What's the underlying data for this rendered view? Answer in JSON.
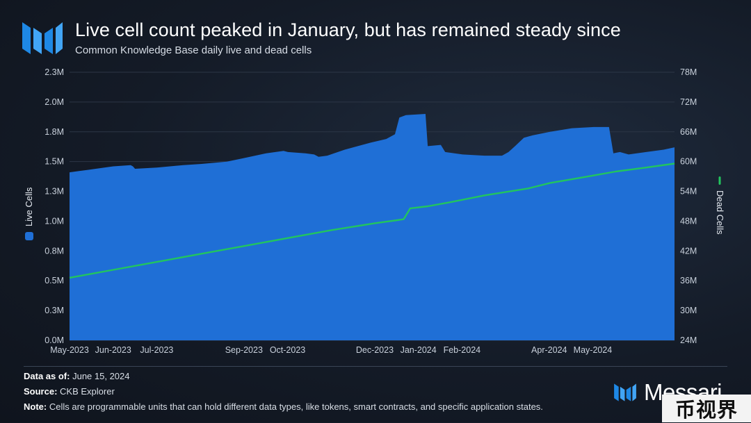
{
  "header": {
    "title": "Live cell count peaked in January, but has remained steady since",
    "subtitle": "Common Knowledge Base daily live and dead cells"
  },
  "footer": {
    "data_as_of_label": "Data as of:",
    "data_as_of_value": "June 15, 2024",
    "source_label": "Source:",
    "source_value": "CKB Explorer",
    "note_label": "Note:",
    "note_value": "Cells are programmable units that can hold different data types, like tokens, smart contracts, and specific application states."
  },
  "brand": {
    "name": "Messari"
  },
  "watermark": {
    "text": "币视界"
  },
  "colors": {
    "live_area": "#1f6fd6",
    "dead_line": "#22c55e",
    "background": "#151c28",
    "grid": "#2a3444"
  },
  "chart_data": {
    "type": "area",
    "title": "Live cell count peaked in January, but has remained steady since",
    "subtitle": "Common Knowledge Base daily live and dead cells",
    "x_tick_labels": [
      "May-2023",
      "Jun-2023",
      "Jul-2023",
      "Sep-2023",
      "Oct-2023",
      "Dec-2023",
      "Jan-2024",
      "Feb-2024",
      "Apr-2024",
      "May-2024"
    ],
    "y_left": {
      "label": "Live Cells",
      "ticks": [
        "0.0M",
        "0.3M",
        "0.5M",
        "0.8M",
        "1.0M",
        "1.3M",
        "1.5M",
        "1.8M",
        "2.0M",
        "2.3M"
      ],
      "tick_values": [
        0,
        0.25,
        0.5,
        0.75,
        1.0,
        1.25,
        1.5,
        1.75,
        2.0,
        2.25
      ],
      "range": [
        0,
        2.25
      ]
    },
    "y_right": {
      "label": "Dead Cells",
      "ticks": [
        "24M",
        "30M",
        "36M",
        "42M",
        "48M",
        "54M",
        "60M",
        "66M",
        "72M",
        "78M"
      ],
      "tick_values": [
        24,
        30,
        36,
        42,
        48,
        54,
        60,
        66,
        72,
        78
      ],
      "range": [
        24,
        78
      ]
    },
    "grid": true,
    "legend": "axis-titles",
    "series": [
      {
        "name": "Live Cells",
        "axis": "left",
        "type": "area",
        "points": [
          [
            0,
            1.41
          ],
          [
            0.2,
            1.42
          ],
          [
            0.6,
            1.44
          ],
          [
            1.0,
            1.46
          ],
          [
            1.4,
            1.47
          ],
          [
            1.45,
            1.46
          ],
          [
            1.5,
            1.44
          ],
          [
            2.0,
            1.45
          ],
          [
            2.6,
            1.47
          ],
          [
            3.0,
            1.48
          ],
          [
            3.6,
            1.5
          ],
          [
            4.0,
            1.53
          ],
          [
            4.5,
            1.57
          ],
          [
            4.9,
            1.59
          ],
          [
            5.0,
            1.58
          ],
          [
            5.4,
            1.57
          ],
          [
            5.6,
            1.56
          ],
          [
            5.7,
            1.54
          ],
          [
            5.9,
            1.55
          ],
          [
            6.3,
            1.6
          ],
          [
            6.9,
            1.66
          ],
          [
            7.25,
            1.69
          ],
          [
            7.45,
            1.73
          ],
          [
            7.55,
            1.87
          ],
          [
            7.7,
            1.89
          ],
          [
            8.15,
            1.9
          ],
          [
            8.2,
            1.63
          ],
          [
            8.5,
            1.64
          ],
          [
            8.6,
            1.58
          ],
          [
            9.0,
            1.56
          ],
          [
            9.5,
            1.55
          ],
          [
            9.9,
            1.55
          ],
          [
            10.05,
            1.58
          ],
          [
            10.2,
            1.63
          ],
          [
            10.4,
            1.7
          ],
          [
            10.6,
            1.72
          ],
          [
            11.0,
            1.75
          ],
          [
            11.5,
            1.78
          ],
          [
            12.0,
            1.79
          ],
          [
            12.35,
            1.79
          ],
          [
            12.45,
            1.57
          ],
          [
            12.6,
            1.58
          ],
          [
            12.8,
            1.56
          ],
          [
            13.2,
            1.58
          ],
          [
            13.6,
            1.6
          ],
          [
            13.85,
            1.62
          ]
        ]
      },
      {
        "name": "Dead Cells",
        "axis": "right",
        "type": "line",
        "points": [
          [
            0,
            36.6
          ],
          [
            1.0,
            38.2
          ],
          [
            2.0,
            39.8
          ],
          [
            3.0,
            41.4
          ],
          [
            4.0,
            43.0
          ],
          [
            5.0,
            44.6
          ],
          [
            6.0,
            46.2
          ],
          [
            7.0,
            47.6
          ],
          [
            7.5,
            48.2
          ],
          [
            7.65,
            48.4
          ],
          [
            7.8,
            50.6
          ],
          [
            8.2,
            51.0
          ],
          [
            8.7,
            51.8
          ],
          [
            9.5,
            53.2
          ],
          [
            10.5,
            54.6
          ],
          [
            11.0,
            55.7
          ],
          [
            11.8,
            56.9
          ],
          [
            12.5,
            58.0
          ],
          [
            13.2,
            58.8
          ],
          [
            13.85,
            59.6
          ]
        ]
      }
    ],
    "x_tick_positions_note": "x values are month indices where 0 = May-2023"
  }
}
